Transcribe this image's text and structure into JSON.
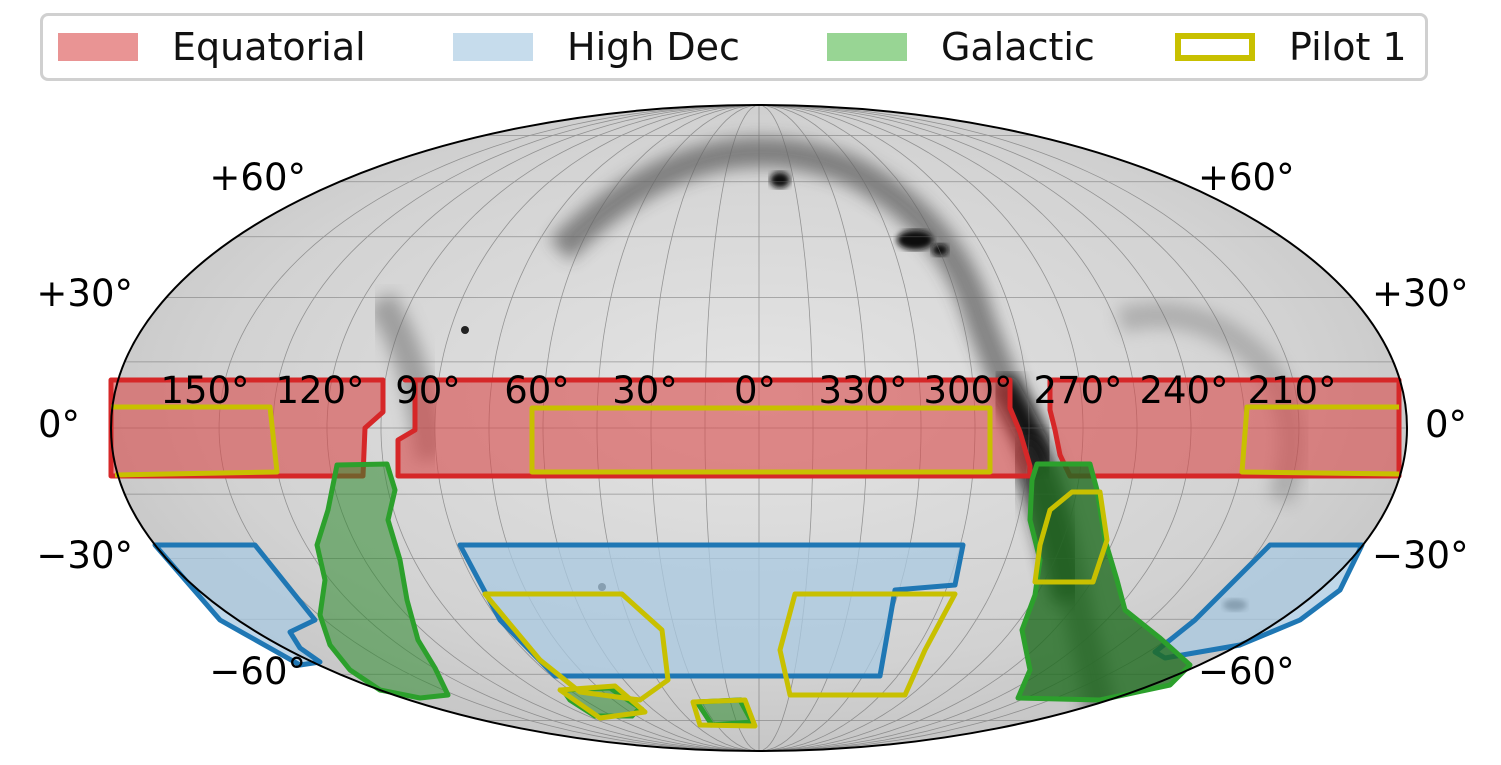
{
  "legend": [
    {
      "label": "Equatorial",
      "fill": "#e99494",
      "edge": "#e99494",
      "style": "filled"
    },
    {
      "label": "High Dec",
      "fill": "#c6dcec",
      "edge": "#c6dcec",
      "style": "filled"
    },
    {
      "label": "Galactic",
      "fill": "#98d594",
      "edge": "#98d594",
      "style": "filled"
    },
    {
      "label": "Pilot 1",
      "fill": "none",
      "edge": "#c8c000",
      "style": "outline"
    }
  ],
  "projection": "mollweide",
  "colors": {
    "equatorial_edge": "#d62728",
    "equatorial_fill": "#e07070",
    "highdec_edge": "#1f77b4",
    "highdec_fill": "#a9c9e2",
    "galactic_edge": "#2ca02c",
    "galactic_fill": "#2e8b2e",
    "pilot_edge": "#c8c000",
    "background_sky": "#d8d8d8",
    "grid": "#555555"
  },
  "longitude_labels": [
    "150$^\\circ$",
    "120$^\\circ$",
    "90$^\\circ$",
    "60$^\\circ$",
    "30$^\\circ$",
    "0$^\\circ$",
    "330$^\\circ$",
    "300$^\\circ$",
    "270$^\\circ$",
    "240$^\\circ$",
    "210$^\\circ$"
  ],
  "longitude_text": [
    "150°",
    "120°",
    "90°",
    "60°",
    "30°",
    "0°",
    "330°",
    "300°",
    "270°",
    "240°",
    "210°"
  ],
  "latitude_text": {
    "left": [
      "+60°",
      "+30°",
      "0°",
      "−30°",
      "−60°"
    ],
    "right": [
      "+60°",
      "+30°",
      "0°",
      "−30°",
      "−60°"
    ]
  }
}
